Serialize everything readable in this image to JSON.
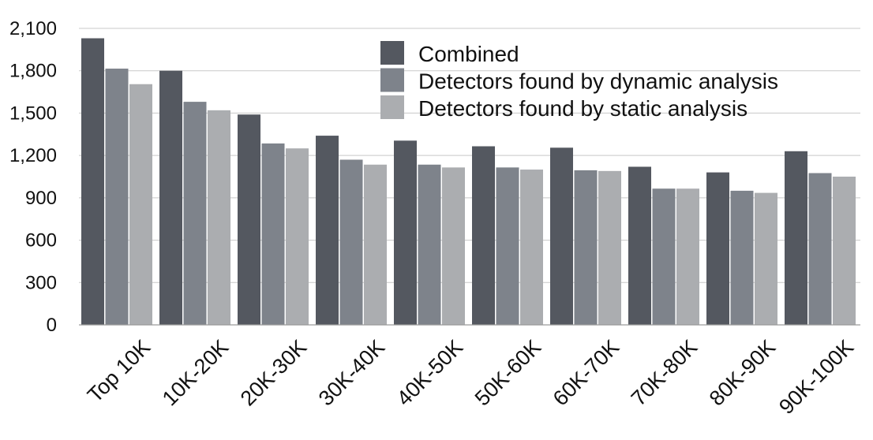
{
  "chart_data": {
    "type": "bar",
    "title": "",
    "xlabel": "",
    "ylabel": "",
    "ylim": [
      0,
      2100
    ],
    "yticks": [
      0,
      300,
      600,
      900,
      1200,
      1500,
      1800,
      2100
    ],
    "ytick_labels": [
      "0",
      "300",
      "600",
      "900",
      "1,200",
      "1,500",
      "1,800",
      "2,100"
    ],
    "grid": true,
    "legend_position": "top-right",
    "categories": [
      "Top 10K",
      "10K-20K",
      "20K-30K",
      "30K-40K",
      "40K-50K",
      "50K-60K",
      "60K-70K",
      "70K-80K",
      "80K-90K",
      "90K-100K"
    ],
    "series": [
      {
        "name": "Combined",
        "color": "#545860",
        "values": [
          2030,
          1800,
          1490,
          1340,
          1305,
          1265,
          1255,
          1120,
          1080,
          1230
        ]
      },
      {
        "name": "Detectors found by dynamic analysis",
        "color": "#7e838b",
        "values": [
          1815,
          1580,
          1285,
          1170,
          1135,
          1115,
          1095,
          965,
          950,
          1075
        ]
      },
      {
        "name": "Detectors found by static analysis",
        "color": "#abadb0",
        "values": [
          1705,
          1520,
          1250,
          1135,
          1115,
          1100,
          1090,
          965,
          935,
          1050
        ]
      }
    ]
  }
}
